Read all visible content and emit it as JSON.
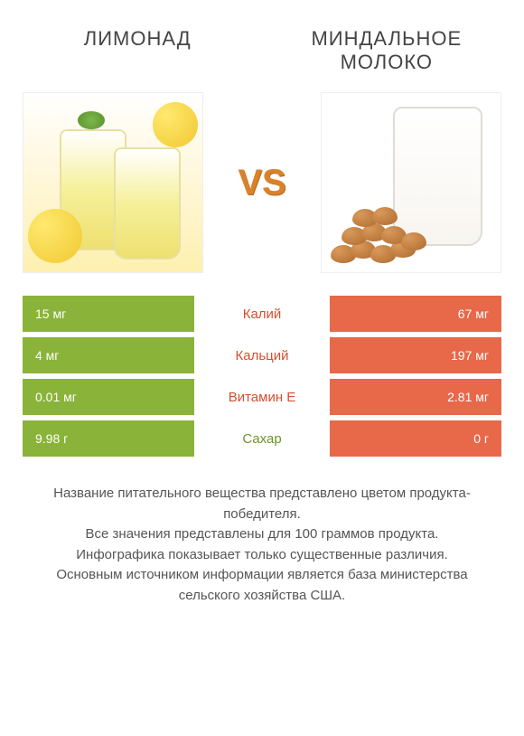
{
  "products": {
    "left": {
      "title": "ЛИМОНАД"
    },
    "right": {
      "title": "МИНДАЛЬНОЕ\nМОЛОКО"
    }
  },
  "vs_label": "VS",
  "colors": {
    "left_bar": "#8ab33a",
    "right_bar": "#e8684a",
    "left_text": "#6f9428",
    "right_text": "#d44f30"
  },
  "rows": [
    {
      "nutrient": "Калий",
      "left": "15 мг",
      "right": "67 мг",
      "winner": "right"
    },
    {
      "nutrient": "Кальций",
      "left": "4 мг",
      "right": "197 мг",
      "winner": "right"
    },
    {
      "nutrient": "Витамин E",
      "left": "0.01 мг",
      "right": "2.81 мг",
      "winner": "right"
    },
    {
      "nutrient": "Сахар",
      "left": "9.98 г",
      "right": "0 г",
      "winner": "left"
    }
  ],
  "footer": [
    "Название питательного вещества представлено цветом продукта-победителя.",
    "Все значения представлены для 100 граммов продукта.",
    "Инфографика показывает только существенные различия.",
    "Основным источником информации является база министерства сельского хозяйства США."
  ]
}
